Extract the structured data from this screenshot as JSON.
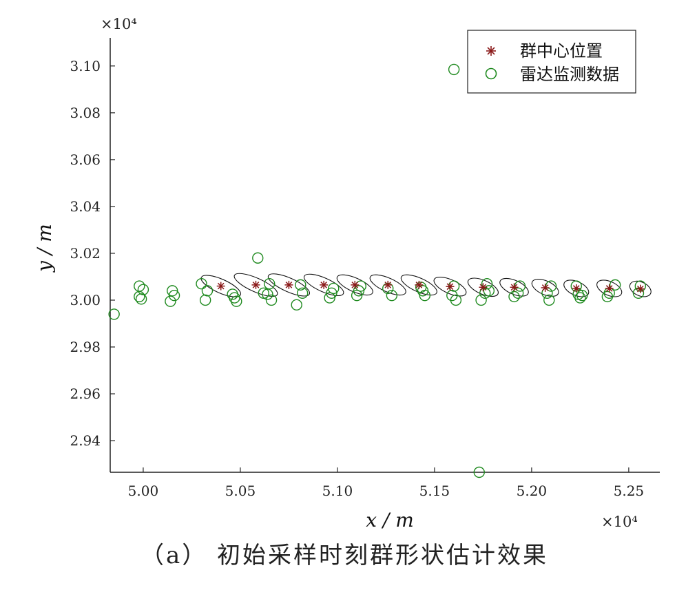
{
  "chart_data": {
    "type": "scatter",
    "caption": "（a） 初始采样时刻群形状估计效果",
    "xlabel": "x / m",
    "ylabel": "y / m",
    "x_exponent_label": "×10⁴",
    "y_exponent_label": "×10⁴",
    "xlim": [
      4.983,
      5.266
    ],
    "ylim": [
      2.9265,
      3.112
    ],
    "x_ticks": [
      "5.00",
      "5.05",
      "5.10",
      "5.15",
      "5.20",
      "5.25"
    ],
    "x_tick_values": [
      5.0,
      5.05,
      5.1,
      5.15,
      5.2,
      5.25
    ],
    "y_ticks": [
      "2.94",
      "2.96",
      "2.98",
      "3.00",
      "3.02",
      "3.04",
      "3.06",
      "3.08",
      "3.10"
    ],
    "y_tick_values": [
      2.94,
      2.96,
      2.98,
      3.0,
      3.02,
      3.04,
      3.06,
      3.08,
      3.1
    ],
    "grid": false,
    "legend_position": "top-right",
    "legend": [
      {
        "label": "群中心位置",
        "marker": "asterisk",
        "color": "#8b1a1a"
      },
      {
        "label": "雷达监测数据",
        "marker": "circle",
        "color": "#1f8a1f"
      }
    ],
    "series": [
      {
        "name": "群中心位置",
        "marker": "asterisk",
        "color": "#8b1a1a",
        "x": [
          5.04,
          5.058,
          5.075,
          5.093,
          5.109,
          5.126,
          5.142,
          5.158,
          5.175,
          5.191,
          5.207,
          5.223,
          5.24,
          5.256
        ],
        "y": [
          3.006,
          3.0065,
          3.0065,
          3.0065,
          3.0065,
          3.0065,
          3.0065,
          3.0058,
          3.0055,
          3.0055,
          3.0053,
          3.005,
          3.005,
          3.0048
        ]
      },
      {
        "name": "雷达监测数据",
        "marker": "circle",
        "color": "#1f8a1f",
        "x": [
          4.985,
          4.998,
          4.998,
          4.999,
          5.0,
          5.014,
          5.015,
          5.016,
          5.03,
          5.032,
          5.033,
          5.046,
          5.047,
          5.048,
          5.059,
          5.062,
          5.064,
          5.065,
          5.066,
          5.079,
          5.081,
          5.082,
          5.096,
          5.097,
          5.098,
          5.11,
          5.111,
          5.112,
          5.126,
          5.128,
          5.143,
          5.144,
          5.145,
          5.159,
          5.16,
          5.161,
          5.174,
          5.176,
          5.177,
          5.178,
          5.191,
          5.193,
          5.194,
          5.208,
          5.209,
          5.21,
          5.223,
          5.224,
          5.225,
          5.226,
          5.239,
          5.24,
          5.243,
          5.255,
          5.256,
          5.16,
          5.173
        ],
        "y": [
          2.994,
          3.006,
          3.0015,
          3.0005,
          3.0045,
          2.9995,
          3.004,
          3.002,
          3.007,
          3.0,
          3.004,
          3.0025,
          3.001,
          2.9995,
          3.018,
          3.003,
          3.0025,
          3.007,
          3.0,
          2.998,
          3.0065,
          3.003,
          3.001,
          3.003,
          3.005,
          3.002,
          3.004,
          3.006,
          3.005,
          3.002,
          3.0055,
          3.004,
          3.002,
          3.002,
          3.006,
          3.0,
          3.0,
          3.003,
          3.007,
          3.004,
          3.0015,
          3.003,
          3.006,
          3.003,
          3.0,
          3.006,
          3.006,
          3.0025,
          3.001,
          3.002,
          3.0015,
          3.003,
          3.0065,
          3.003,
          3.006,
          3.0985,
          2.9265
        ]
      },
      {
        "name": "群形状",
        "marker": "ellipse",
        "color": "#111111",
        "centers_x": [
          5.04,
          5.058,
          5.075,
          5.093,
          5.109,
          5.126,
          5.142,
          5.158,
          5.175,
          5.191,
          5.207,
          5.223,
          5.24,
          5.256
        ],
        "centers_y": [
          3.006,
          3.0065,
          3.0065,
          3.0065,
          3.0065,
          3.0065,
          3.0065,
          3.0058,
          3.0055,
          3.0055,
          3.0053,
          3.005,
          3.005,
          3.0048
        ],
        "half_width_x": [
          0.0105,
          0.0115,
          0.011,
          0.0105,
          0.0095,
          0.0095,
          0.0095,
          0.0085,
          0.008,
          0.0075,
          0.007,
          0.0065,
          0.0065,
          0.0055
        ]
      }
    ]
  }
}
